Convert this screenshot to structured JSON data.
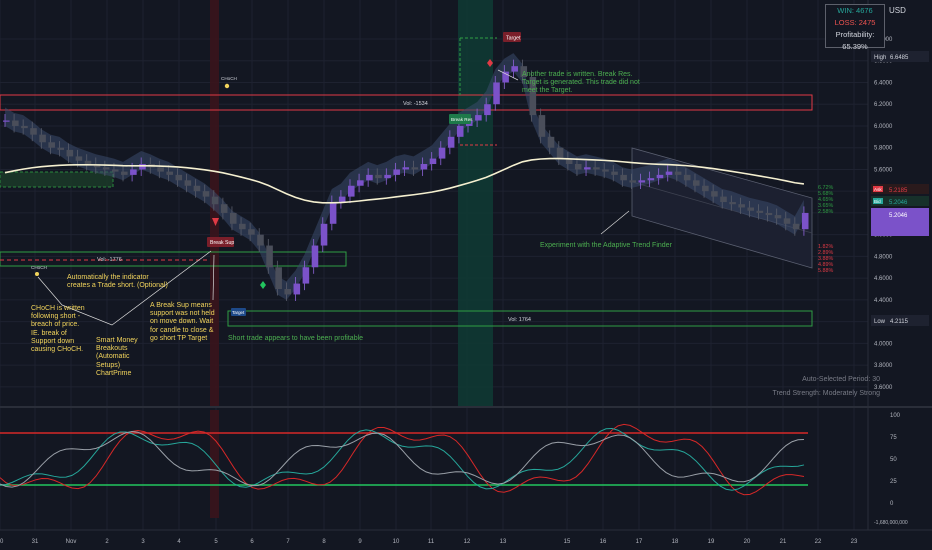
{
  "header": {
    "currency": "USD",
    "stats": {
      "win": "WIN: 4676",
      "loss": "LOSS: 2475",
      "profitability": "Profitability: 65.39%"
    }
  },
  "price_axis": {
    "ticks": [
      "6.8000",
      "6.6000",
      "6.4000",
      "6.2000",
      "6.0000",
      "5.8000",
      "5.6000",
      "5.4000",
      "5.2000",
      "5.0000",
      "4.8000",
      "4.6000",
      "4.4000",
      "4.2000",
      "4.0000",
      "3.8000",
      "3.6000"
    ],
    "high_label": "High",
    "high_value": "6.6485",
    "ask_label": "Ask",
    "ask_value": "5.2185",
    "bid_label": "Bid",
    "bid_value": "5.2046",
    "current_value": "5.2046",
    "low_label": "Low",
    "low_value": "4.2115"
  },
  "osc_axis": {
    "ticks": [
      "100",
      "75",
      "50",
      "25",
      "0",
      "-1,680,000,000"
    ]
  },
  "time_axis": {
    "ticks": [
      "30",
      "31",
      "Nov",
      "2",
      "3",
      "4",
      "5",
      "6",
      "7",
      "8",
      "9",
      "10",
      "11",
      "12",
      "13",
      "15",
      "16",
      "17",
      "18",
      "19",
      "20",
      "21",
      "22",
      "23"
    ]
  },
  "zones": {
    "vol_top": "Vol: -1534",
    "vol_mid": "Vol: -1776",
    "vol_bottom": "Vol: 1764"
  },
  "markers": {
    "choch": "CHoCH",
    "choch_low": "CHoCH",
    "break_sup": "Break Sup",
    "target_top": "Target",
    "target_bottom": "Target",
    "break_res": "Break Res"
  },
  "trend_percents": {
    "upper": [
      "6.72%",
      "5.68%",
      "4.65%",
      "3.65%",
      "2.58%"
    ],
    "lower": [
      "1.82%",
      "2.89%",
      "3.88%",
      "4.89%",
      "5.88%"
    ]
  },
  "annotations": {
    "another_trade": "Another trade is written. Break Res. Target is generated. This trade did not meet the Target.",
    "experiment": "Experiment with the Adaptive Trend Finder",
    "auto_short": "Automatically the indicator creates a Trade short. (Optional)",
    "choch_note": "CHoCH is written following short - breach of price. IE. break of Support down causing CHoCH.",
    "break_sup_note": "A Break Sup means support was not held on move down. Wait for candle to close & go short TP Target",
    "smc_note": "Smart Money Breakouts (Automatic Setups) ChartPrime",
    "short_trade": "Short trade appears to have been profitable"
  },
  "trend_finder": {
    "period": "Auto-Selected Period: 30",
    "strength": "Trend Strength: Moderately Strong"
  },
  "colors": {
    "background": "#131722",
    "bull": "#7b52c9",
    "bear": "#4a4e5a",
    "ema": "#f5f0d0",
    "resistance": "#e03a45",
    "support": "#2f9e44",
    "osc_level_high": "#d62828",
    "osc_level_low": "#22c55e"
  }
}
